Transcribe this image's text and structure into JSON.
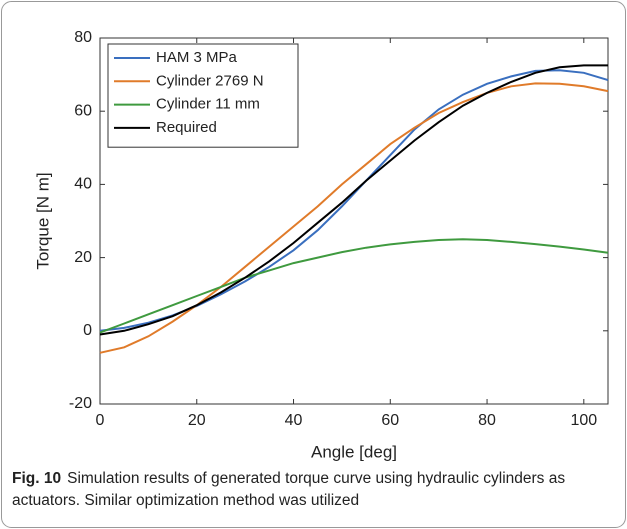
{
  "chart_data": {
    "type": "line",
    "xlabel": "Angle [deg]",
    "ylabel": "Torque [N m]",
    "x": [
      0,
      5,
      10,
      15,
      20,
      25,
      30,
      35,
      40,
      45,
      50,
      55,
      60,
      65,
      70,
      75,
      80,
      85,
      90,
      95,
      100,
      105
    ],
    "series": [
      {
        "name": "HAM 3 MPa",
        "color": "#3a6fbf",
        "values": [
          0,
          0.8,
          2.2,
          4.2,
          6.8,
          10,
          13.5,
          17.5,
          22,
          27.5,
          34,
          41,
          48,
          55,
          60.5,
          64.5,
          67.5,
          69.5,
          71,
          71.2,
          70.5,
          68.5
        ]
      },
      {
        "name": "Cylinder 2769 N",
        "color": "#e07b2a",
        "values": [
          -6,
          -4.5,
          -1.5,
          2.5,
          7,
          12,
          17.5,
          23,
          28.5,
          34,
          40,
          45.5,
          51,
          55.5,
          59.5,
          62.5,
          65,
          66.8,
          67.6,
          67.5,
          66.8,
          65.5
        ]
      },
      {
        "name": "Cylinder 11 mm",
        "color": "#3f9a3f",
        "values": [
          -0.5,
          2,
          4.5,
          7,
          9.5,
          12,
          14.5,
          16.5,
          18.5,
          20,
          21.5,
          22.7,
          23.6,
          24.3,
          24.8,
          25,
          24.8,
          24.3,
          23.7,
          23,
          22.2,
          21.3
        ]
      },
      {
        "name": "Required",
        "color": "#000000",
        "values": [
          -1,
          0,
          1.8,
          4,
          7,
          10.5,
          14.5,
          19,
          24,
          29.5,
          35,
          41,
          46.5,
          52,
          57,
          61.5,
          65,
          68,
          70.5,
          72,
          72.5,
          72.5
        ]
      }
    ],
    "xlim": [
      0,
      105
    ],
    "xticks": [
      0,
      20,
      40,
      60,
      80,
      100
    ],
    "ylim": [
      -20,
      80
    ],
    "yticks": [
      -20,
      0,
      20,
      40,
      60,
      80
    ],
    "legend": "upper left"
  },
  "caption": {
    "label": "Fig. 10",
    "text": "Simulation results of generated torque curve using hydraulic cylinders as actuators. Similar optimization method was utilized"
  }
}
